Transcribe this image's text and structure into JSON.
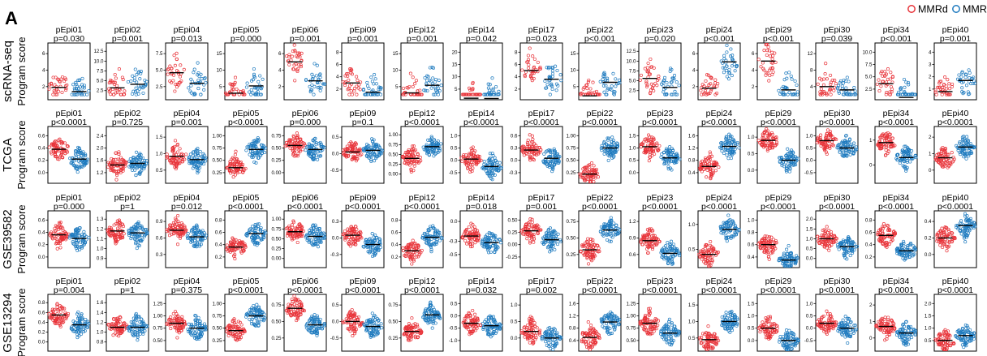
{
  "figure": {
    "panel_label": "A",
    "legend": [
      {
        "label": "MMRd",
        "color": "#e8343a"
      },
      {
        "label": "MMRp",
        "color": "#1f7bbf"
      }
    ]
  },
  "chart_data": {
    "type": "scatter",
    "style": "beeswarm",
    "groups": [
      "MMRd",
      "MMRp"
    ],
    "colors": {
      "MMRd": "#e8343a",
      "MMRp": "#1f7bbf"
    },
    "programs": [
      "pEpi01",
      "pEpi02",
      "pEpi04",
      "pEpi05",
      "pEpi06",
      "pEpi09",
      "pEpi12",
      "pEpi14",
      "pEpi17",
      "pEpi22",
      "pEpi23",
      "pEpi24",
      "pEpi29",
      "pEpi30",
      "pEpi34",
      "pEpi40"
    ],
    "ylabel": "Program score",
    "rows": [
      {
        "dataset": "scRNA-seq",
        "pvalues": [
          "p=0.030",
          "p=0.001",
          "p=0.013",
          "p=0.000",
          "p=0.001",
          "p=0.001",
          "p=0.001",
          "p=0.042",
          "p=0.023",
          "p<0.001",
          "p=0.020",
          "p<0.001",
          "p<0.001",
          "p=0.039",
          "p<0.001",
          "p=0.001"
        ],
        "yticks": [
          [
            2,
            4,
            6
          ],
          [
            2.5,
            5.0,
            7.5,
            10.0,
            12.5
          ],
          [
            2.5,
            5.0,
            7.5
          ],
          [
            5,
            10,
            15
          ],
          [
            2,
            4,
            6
          ],
          [
            2,
            4,
            6,
            8
          ],
          [
            5,
            10,
            15
          ],
          [
            5,
            10,
            15,
            20
          ],
          [
            2,
            4,
            6,
            8
          ],
          [
            5,
            10,
            15
          ],
          [
            2.5,
            5.0,
            7.5,
            10.0,
            12.5
          ],
          [
            2,
            4,
            6
          ],
          [
            2,
            4,
            6
          ],
          [
            4,
            8,
            12
          ],
          [
            2.5,
            5.0,
            7.5,
            10.0
          ],
          [
            1,
            2,
            3,
            4
          ]
        ],
        "medians": [
          [
            1.9,
            1.4
          ],
          [
            3.2,
            4.1
          ],
          [
            4.6,
            3.0
          ],
          [
            3.0,
            5.2
          ],
          [
            5.0,
            2.7
          ],
          [
            3.0,
            1.5
          ],
          [
            3.1,
            5.4
          ],
          [
            1.3,
            1.2
          ],
          [
            5.0,
            3.6
          ],
          [
            2.2,
            6.3
          ],
          [
            5.6,
            3.3
          ],
          [
            1.8,
            5.0
          ],
          [
            5.1,
            1.6
          ],
          [
            4.0,
            3.2
          ],
          [
            3.6,
            0.8
          ],
          [
            0.8,
            1.7
          ]
        ]
      },
      {
        "dataset": "TCGA",
        "pvalues": [
          "p<0.0001",
          "p=0.725",
          "p=0.001",
          "p<0.0001",
          "p=0.000",
          "p=0.1",
          "p<0.0001",
          "p<0.0001",
          "p<0.0001",
          "p<0.0001",
          "p<0.0001",
          "p<0.0001",
          "p<0.0001",
          "p<0.0001",
          "p<0.0001",
          "p<0.0001"
        ],
        "yticks": [
          [
            0.0,
            0.2,
            0.4,
            0.6
          ],
          [
            1.2,
            1.6,
            2.0,
            2.4
          ],
          [
            0.5,
            1.0,
            1.5
          ],
          [
            0.25,
            0.5,
            0.75,
            1.0
          ],
          [
            0.0,
            0.25,
            0.5,
            0.75
          ],
          [
            -0.5,
            0.0,
            0.5
          ],
          [
            0.0,
            0.25,
            0.5,
            0.75,
            1.0
          ],
          [
            -0.5,
            0.0,
            0.5,
            1.0
          ],
          [
            -0.3,
            0.0,
            0.3,
            0.6
          ],
          [
            0.25,
            0.5,
            0.75,
            1.0
          ],
          [
            0.0,
            0.5,
            1.0,
            1.5
          ],
          [
            0.4,
            0.8,
            1.2,
            1.6
          ],
          [
            0.0,
            0.5,
            1.0
          ],
          [
            -0.5,
            0.0,
            0.5,
            1.0
          ],
          [
            0,
            1
          ],
          [
            0,
            1,
            2
          ]
        ],
        "medians": [
          [
            0.38,
            0.22
          ],
          [
            1.45,
            1.5
          ],
          [
            0.92,
            0.82
          ],
          [
            0.35,
            0.72
          ],
          [
            0.55,
            0.47
          ],
          [
            0.05,
            0.1
          ],
          [
            0.4,
            0.7
          ],
          [
            0.05,
            -0.25
          ],
          [
            0.25,
            0.05
          ],
          [
            0.22,
            0.75
          ],
          [
            1.05,
            0.6
          ],
          [
            0.6,
            1.25
          ],
          [
            0.9,
            0.3
          ],
          [
            0.8,
            0.5
          ],
          [
            0.9,
            0.3
          ],
          [
            0.75,
            1.4
          ]
        ]
      },
      {
        "dataset": "GSE39582",
        "pvalues": [
          "p=0.000",
          "p=1",
          "p=0.012",
          "p<0.0001",
          "p<0.0001",
          "p<0.0001",
          "p<0.0001",
          "p=0.018",
          "p=0.001",
          "p<0.0001",
          "p<0.0001",
          "p<0.0001",
          "p<0.0001",
          "p<0.0001",
          "p<0.0001",
          "p<0.0001"
        ],
        "yticks": [
          [
            0.0,
            0.2,
            0.4,
            0.6
          ],
          [
            0.9,
            1.0,
            1.1,
            1.2,
            1.3
          ],
          [
            0.3,
            0.6,
            0.9
          ],
          [
            0.2,
            0.4,
            0.6,
            0.8
          ],
          [
            0.0,
            0.25,
            0.5,
            0.75,
            1.0
          ],
          [
            -0.3,
            0.0,
            0.3
          ],
          [
            0.2,
            0.4,
            0.6,
            0.8
          ],
          [
            -0.5,
            -0.3,
            0.0
          ],
          [
            -0.25,
            0.0,
            0.25,
            0.5
          ],
          [
            0.25,
            0.5,
            0.75
          ],
          [
            0.6,
            0.9,
            1.2
          ],
          [
            0.5,
            1.0
          ],
          [
            0.4,
            0.6,
            0.8,
            1.0
          ],
          [
            0.0,
            0.5,
            1.0,
            1.5,
            2.0
          ],
          [
            0.2,
            0.4,
            0.6,
            0.8
          ],
          [
            0.0,
            0.2,
            0.4
          ]
        ],
        "medians": [
          [
            0.36,
            0.3
          ],
          [
            1.18,
            1.16
          ],
          [
            0.74,
            0.62
          ],
          [
            0.36,
            0.58
          ],
          [
            0.68,
            0.56
          ],
          [
            0.05,
            -0.12
          ],
          [
            0.3,
            0.52
          ],
          [
            -0.22,
            -0.32
          ],
          [
            0.28,
            0.1
          ],
          [
            0.32,
            0.62
          ],
          [
            0.85,
            0.62
          ],
          [
            0.4,
            0.9
          ],
          [
            0.6,
            0.35
          ],
          [
            1.0,
            0.6
          ],
          [
            0.55,
            0.3
          ],
          [
            0.2,
            0.35
          ]
        ]
      },
      {
        "dataset": "GSE13294",
        "pvalues": [
          "p=0.004",
          "p=1",
          "p=0.375",
          "p<0.0001",
          "p<0.0001",
          "p<0.0001",
          "p<0.0001",
          "p=0.032",
          "p=0.002",
          "p<0.0001",
          "p<0.0001",
          "p<0.0001",
          "p<0.0001",
          "p<0.0001",
          "p<0.0001",
          "p<0.0001"
        ],
        "yticks": [
          [
            0.0,
            0.2,
            0.4,
            0.6,
            0.8
          ],
          [
            0.8,
            1.0,
            1.2,
            1.4,
            1.6
          ],
          [
            0.5,
            0.75,
            1.0,
            1.25
          ],
          [
            0.25,
            0.5,
            0.75,
            1.0
          ],
          [
            0.25,
            0.5,
            0.75
          ],
          [
            -0.5,
            0.0,
            0.5
          ],
          [
            0.25,
            0.5,
            0.75
          ],
          [
            -1.0,
            -0.5,
            0.0,
            0.5
          ],
          [
            0.0,
            0.5,
            1.0
          ],
          [
            0.4,
            0.8,
            1.2,
            1.6
          ],
          [
            0.5,
            0.75,
            1.0,
            1.25
          ],
          [
            0.5,
            1.0,
            1.5
          ],
          [
            0.0,
            0.5,
            1.0,
            1.5
          ],
          [
            -0.5,
            0.0,
            0.5,
            1.0
          ],
          [
            0,
            1,
            2
          ],
          [
            0.5,
            1.0,
            1.5,
            2.0
          ]
        ],
        "medians": [
          [
            0.55,
            0.35
          ],
          [
            1.1,
            1.1
          ],
          [
            0.85,
            0.75
          ],
          [
            0.45,
            0.75
          ],
          [
            0.7,
            0.45
          ],
          [
            0.0,
            -0.15
          ],
          [
            0.35,
            0.6
          ],
          [
            -0.3,
            -0.4
          ],
          [
            0.2,
            0.0
          ],
          [
            0.5,
            1.0
          ],
          [
            0.85,
            0.65
          ],
          [
            0.45,
            1.0
          ],
          [
            0.5,
            0.0
          ],
          [
            0.2,
            0.0
          ],
          [
            0.7,
            0.3
          ],
          [
            0.5,
            0.7
          ]
        ]
      }
    ]
  }
}
